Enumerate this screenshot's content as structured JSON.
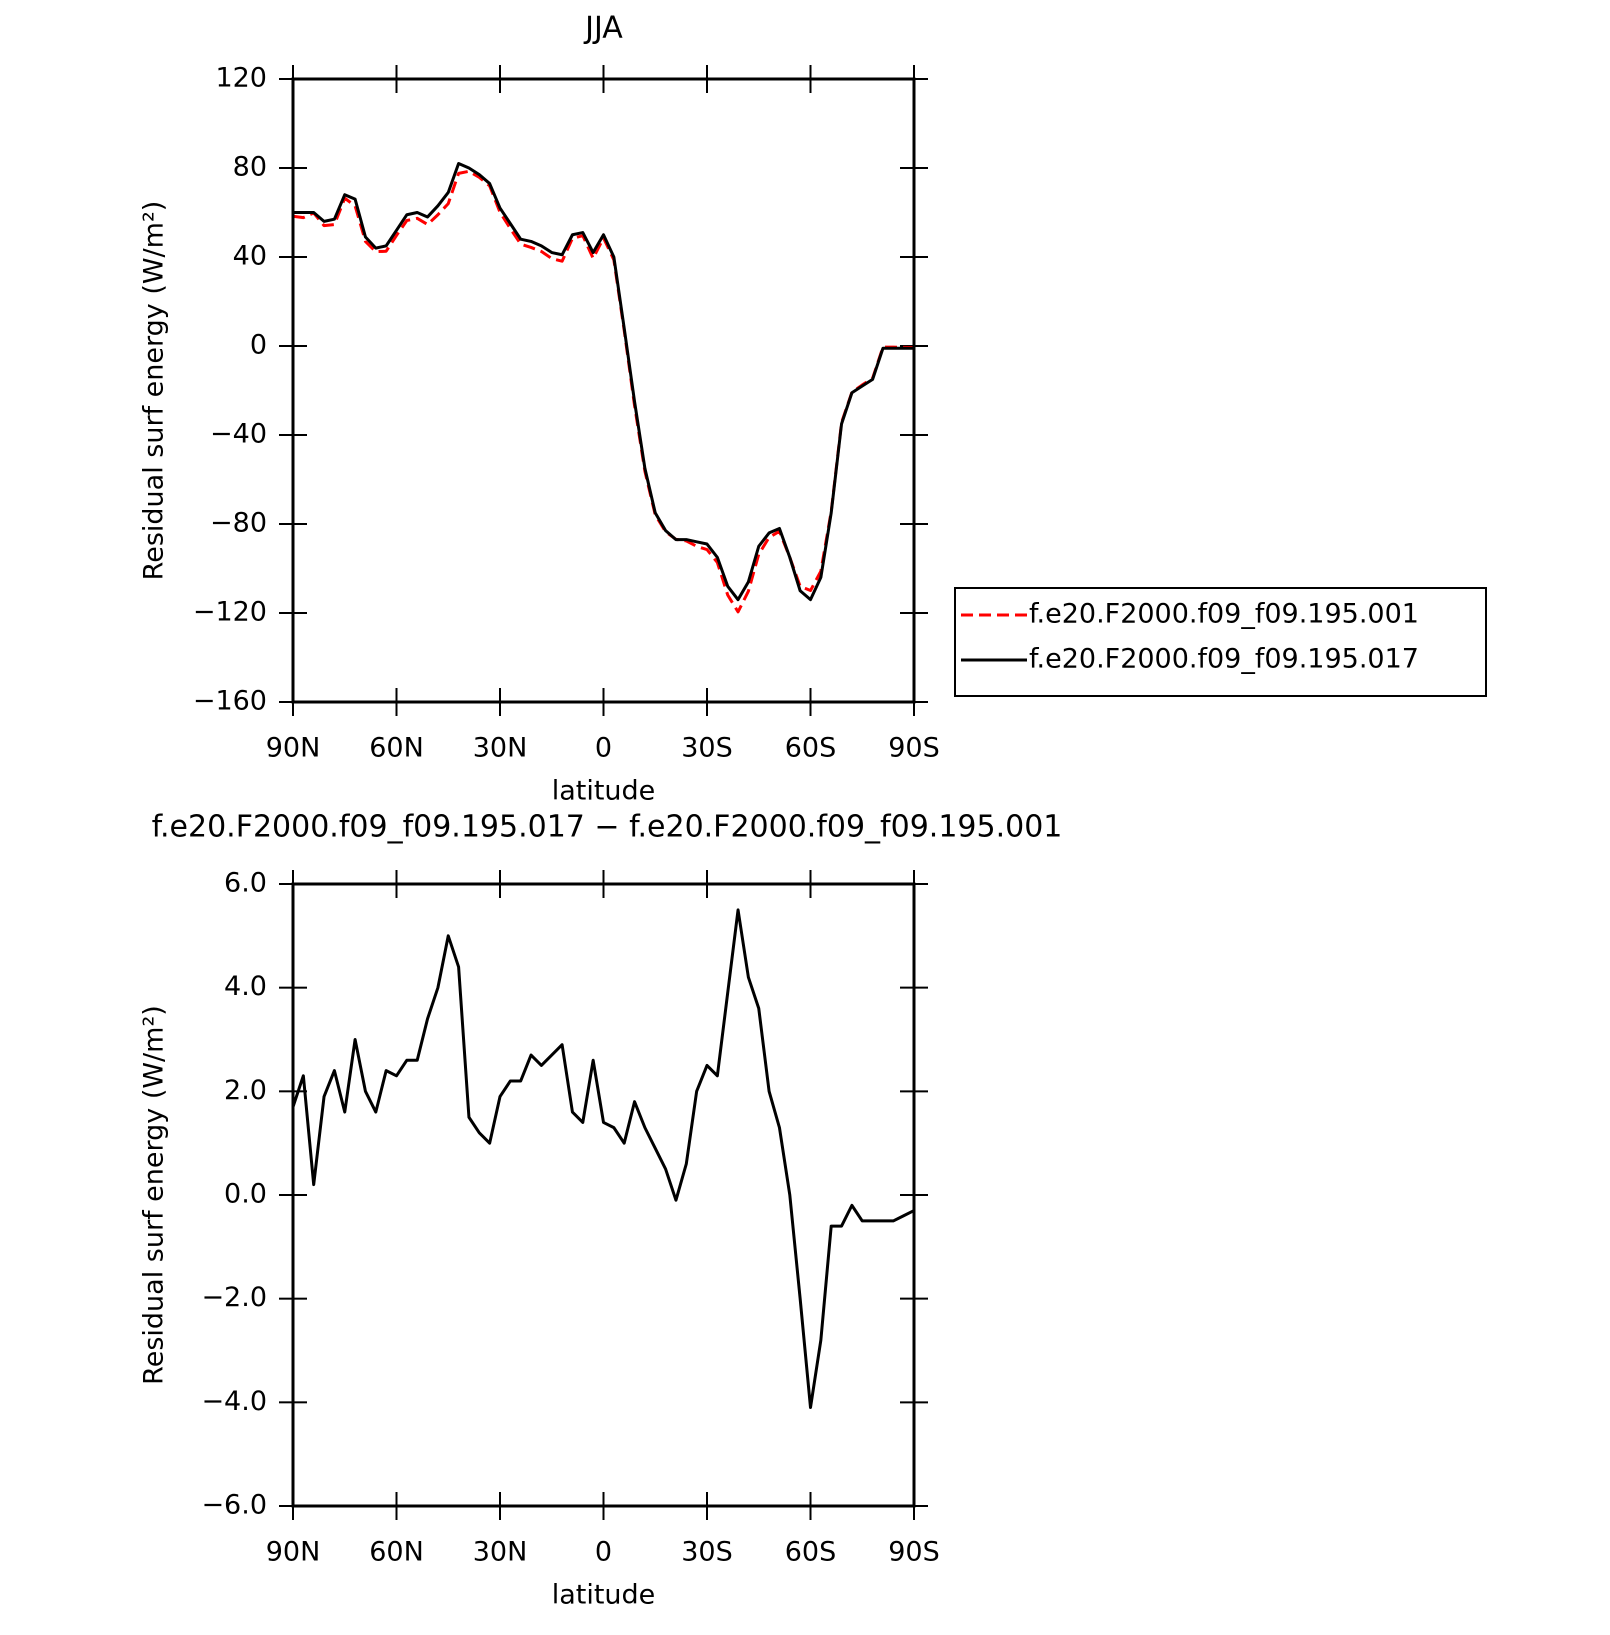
{
  "chart_data": [
    {
      "type": "line",
      "title": "JJA",
      "xlabel": "latitude",
      "ylabel": "Residual surf energy (W/m²)",
      "x": [
        90,
        87,
        84,
        81,
        78,
        75,
        72,
        69,
        66,
        63,
        60,
        57,
        54,
        51,
        48,
        45,
        42,
        39,
        36,
        33,
        30,
        27,
        24,
        21,
        18,
        15,
        12,
        9,
        6,
        3,
        0,
        -3,
        -6,
        -9,
        -12,
        -15,
        -18,
        -21,
        -24,
        -27,
        -30,
        -33,
        -36,
        -39,
        -42,
        -45,
        -48,
        -51,
        -54,
        -57,
        -60,
        -63,
        -66,
        -69,
        -72,
        -75,
        -78,
        -81,
        -84,
        -87,
        -90
      ],
      "series": [
        {
          "name": "f.e20.F2000.f09_f09.195.001",
          "color": "#ff0000",
          "dash": true,
          "values": [
            58.3,
            57.7,
            59.8,
            54.1,
            54.6,
            66.4,
            63,
            47,
            42.4,
            42.6,
            49.7,
            56.4,
            57.4,
            54.6,
            59,
            64,
            77.6,
            78.5,
            75.8,
            72,
            60.1,
            52.8,
            45.8,
            44.3,
            42.5,
            39.3,
            38.1,
            48.4,
            49.6,
            39.4,
            48.6,
            38.7,
            7,
            -26.8,
            -56.3,
            -75.9,
            -83.5,
            -86.9,
            -87.6,
            -90,
            -91.5,
            -97.3,
            -111.9,
            -119.5,
            -110.2,
            -93.6,
            -86,
            -83.3,
            -95,
            -108,
            -109.9,
            -101.2,
            -74.4,
            -34.4,
            -20.8,
            -17.5,
            -14.5,
            -0.5,
            -0.5,
            -0.6,
            -0.7
          ]
        },
        {
          "name": "f.e20.F2000.f09_f09.195.017",
          "color": "#000000",
          "dash": false,
          "values": [
            60,
            60,
            60,
            56,
            57,
            68,
            66,
            49,
            44,
            45,
            52,
            59,
            60,
            58,
            63,
            69,
            82,
            80,
            77,
            73,
            62,
            55,
            48,
            47,
            45,
            42,
            41,
            50,
            51,
            42,
            50,
            40,
            8,
            -25,
            -55,
            -75,
            -83,
            -87,
            -87,
            -88,
            -89,
            -95,
            -108,
            -114,
            -106,
            -90,
            -84,
            -82,
            -95,
            -110,
            -114,
            -104,
            -75,
            -35,
            -21,
            -18,
            -15,
            -1,
            -1,
            -1,
            -1
          ]
        }
      ],
      "xlim": [
        90,
        -90
      ],
      "xticks": [
        {
          "value": 90,
          "label": "90N"
        },
        {
          "value": 60,
          "label": "60N"
        },
        {
          "value": 30,
          "label": "30N"
        },
        0,
        {
          "value": -30,
          "label": "30S"
        },
        {
          "value": -60,
          "label": "60S"
        },
        {
          "value": -90,
          "label": "90S"
        }
      ],
      "ylim": [
        -160,
        120
      ],
      "yticks": [
        {
          "value": -160,
          "label": "−160"
        },
        {
          "value": -120,
          "label": "−120"
        },
        {
          "value": -80,
          "label": "−80"
        },
        {
          "value": -40,
          "label": "−40"
        },
        0,
        40,
        80,
        120
      ]
    },
    {
      "type": "line",
      "title": "f.e20.F2000.f09_f09.195.017 − f.e20.F2000.f09_f09.195.001",
      "xlabel": "latitude",
      "ylabel": "Residual surf energy (W/m²)",
      "x": [
        90,
        87,
        84,
        81,
        78,
        75,
        72,
        69,
        66,
        63,
        60,
        57,
        54,
        51,
        48,
        45,
        42,
        39,
        36,
        33,
        30,
        27,
        24,
        21,
        18,
        15,
        12,
        9,
        6,
        3,
        0,
        -3,
        -6,
        -9,
        -12,
        -15,
        -18,
        -21,
        -24,
        -27,
        -30,
        -33,
        -36,
        -39,
        -42,
        -45,
        -48,
        -51,
        -54,
        -57,
        -60,
        -63,
        -66,
        -69,
        -72,
        -75,
        -78,
        -81,
        -84,
        -87,
        -90
      ],
      "series": [
        {
          "color": "#000000",
          "dash": false,
          "values": [
            1.7,
            2.3,
            0.2,
            1.9,
            2.4,
            1.6,
            3.0,
            2.0,
            1.6,
            2.4,
            2.3,
            2.6,
            2.6,
            3.4,
            4.0,
            5.0,
            4.4,
            1.5,
            1.2,
            1.0,
            1.9,
            2.2,
            2.2,
            2.7,
            2.5,
            2.7,
            2.9,
            1.6,
            1.4,
            2.6,
            1.4,
            1.3,
            1.0,
            1.8,
            1.3,
            0.9,
            0.5,
            -0.1,
            0.6,
            2.0,
            2.5,
            2.3,
            3.9,
            5.5,
            4.2,
            3.6,
            2.0,
            1.3,
            0.0,
            -2.0,
            -4.1,
            -2.8,
            -0.6,
            -0.6,
            -0.2,
            -0.5,
            -0.5,
            -0.5,
            -0.5,
            -0.4,
            -0.3
          ]
        }
      ],
      "xlim": [
        90,
        -90
      ],
      "xticks": [
        {
          "value": 90,
          "label": "90N"
        },
        {
          "value": 60,
          "label": "60N"
        },
        {
          "value": 30,
          "label": "30N"
        },
        0,
        {
          "value": -30,
          "label": "30S"
        },
        {
          "value": -60,
          "label": "60S"
        },
        {
          "value": -90,
          "label": "90S"
        }
      ],
      "ylim": [
        -6,
        6
      ],
      "yticks": [
        {
          "value": -6,
          "label": "−6.0"
        },
        {
          "value": -4,
          "label": "−4.0"
        },
        {
          "value": -2,
          "label": "−2.0"
        },
        {
          "value": 0,
          "label": "0.0"
        },
        {
          "value": 2,
          "label": "2.0"
        },
        {
          "value": 4,
          "label": "4.0"
        },
        {
          "value": 6,
          "label": "6.0"
        }
      ]
    }
  ]
}
